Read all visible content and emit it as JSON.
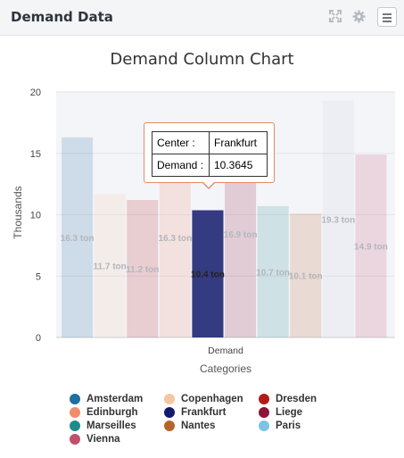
{
  "panel": {
    "title": "Demand Data",
    "icons": {
      "fullscreen": "expand-icon",
      "settings": "gear-icon",
      "menu": "hamburger-menu-icon"
    }
  },
  "chart_data": {
    "type": "bar",
    "title": "Demand Column Chart",
    "xlabel": "Categories",
    "ylabel": "Thousands",
    "categories": [
      "Demand"
    ],
    "ylim": [
      0,
      20
    ],
    "yticks": [
      "0",
      "5",
      "10",
      "15",
      "20"
    ],
    "grid": true,
    "legend_position": "bottom",
    "series": [
      {
        "name": "Amsterdam",
        "value": 16.3,
        "label": "16.3 ton",
        "color": "#1f6f9f"
      },
      {
        "name": "Copenhagen",
        "value": 11.7,
        "label": "11.7 ton",
        "color": "#f5c7a1"
      },
      {
        "name": "Dresden",
        "value": 11.2,
        "label": "11.2 ton",
        "color": "#b31b1b"
      },
      {
        "name": "Edinburgh",
        "value": 16.3,
        "label": "16.3 ton",
        "color": "#ef8d6c"
      },
      {
        "name": "Frankfurt",
        "value": 10.3645,
        "label": "10.4 ton",
        "color": "#121a6b"
      },
      {
        "name": "Liege",
        "value": 16.9,
        "label": "16.9 ton",
        "color": "#8a1538"
      },
      {
        "name": "Marseilles",
        "value": 10.7,
        "label": "10.7 ton",
        "color": "#1f8a8c"
      },
      {
        "name": "Nantes",
        "value": 10.1,
        "label": "10.1 ton",
        "color": "#b5652a"
      },
      {
        "name": "Paris",
        "value": 19.3,
        "label": "19.3 ton",
        "color": "#cfd3d8"
      },
      {
        "name": "Vienna",
        "value": 14.9,
        "label": "14.9 ton",
        "color": "#c0506e"
      }
    ],
    "highlighted_series": "Frankfurt"
  },
  "legend": [
    {
      "name": "Amsterdam",
      "color": "#1f6f9f"
    },
    {
      "name": "Copenhagen",
      "color": "#f5c7a1"
    },
    {
      "name": "Dresden",
      "color": "#b31b1b"
    },
    {
      "name": "Edinburgh",
      "color": "#ef8d6c"
    },
    {
      "name": "Frankfurt",
      "color": "#121a6b"
    },
    {
      "name": "Liege",
      "color": "#8a1538"
    },
    {
      "name": "Marseilles",
      "color": "#1f8a8c"
    },
    {
      "name": "Nantes",
      "color": "#b5652a"
    },
    {
      "name": "Paris",
      "color": "#7ec3e6"
    },
    {
      "name": "Vienna",
      "color": "#c0506e"
    }
  ],
  "tooltip": {
    "center_key": "Center :",
    "center_value": "Frankfurt",
    "demand_key": "Demand :",
    "demand_value": "10.3645"
  }
}
